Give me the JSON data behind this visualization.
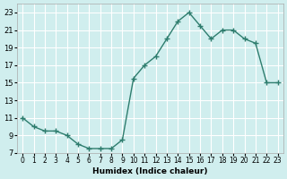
{
  "humidex_values": [
    11,
    10,
    9.5,
    9.5,
    9,
    8,
    7.5,
    7.5,
    7.5,
    8.5,
    15.5,
    17,
    18,
    20,
    22,
    23,
    21.5,
    20,
    21,
    21,
    20,
    19.5,
    15,
    15
  ],
  "line_color": "#2e7d6e",
  "marker_color": "#2e7d6e",
  "bg_color": "#d0eeee",
  "grid_color": "#ffffff",
  "xlabel": "Humidex (Indice chaleur)",
  "xlim": [
    -0.5,
    23.5
  ],
  "ylim": [
    7,
    24
  ],
  "yticks": [
    7,
    9,
    11,
    13,
    15,
    17,
    19,
    21,
    23
  ],
  "xticks": [
    0,
    1,
    2,
    3,
    4,
    5,
    6,
    7,
    8,
    9,
    10,
    11,
    12,
    13,
    14,
    15,
    16,
    17,
    18,
    19,
    20,
    21,
    22,
    23
  ]
}
